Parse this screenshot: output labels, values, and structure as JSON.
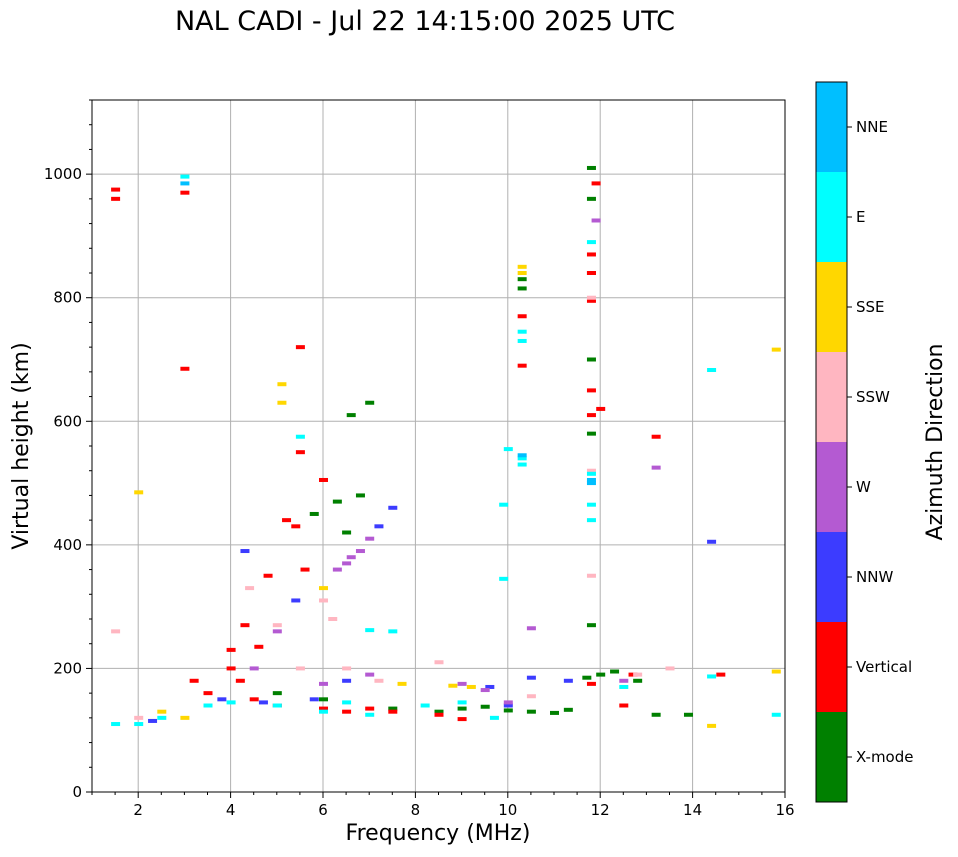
{
  "title": "NAL CADI - Jul 22 14:15:00 2025 UTC",
  "chart_data": {
    "type": "scatter",
    "title": "NAL CADI - Jul 22 14:15:00 2025 UTC",
    "xlabel": "Frequency (MHz)",
    "ylabel": "Virtual height (km)",
    "xlim": [
      1,
      16
    ],
    "ylim": [
      0,
      1120
    ],
    "xticks": [
      2,
      4,
      6,
      8,
      10,
      12,
      14,
      16
    ],
    "yticks": [
      0,
      200,
      400,
      600,
      800,
      1000
    ],
    "grid": true,
    "colorbar": {
      "label": "Azimuth Direction",
      "categories": [
        "X-mode",
        "Vertical",
        "NNW",
        "W",
        "SSW",
        "SSE",
        "E",
        "NNE"
      ],
      "colors": [
        "#008000",
        "#ff0000",
        "#3c3cff",
        "#b45ad2",
        "#ffb6c1",
        "#ffd700",
        "#00ffff",
        "#00bfff"
      ]
    },
    "series": [
      {
        "name": "X-mode",
        "points": [
          [
            9.0,
            135
          ],
          [
            9.5,
            138
          ],
          [
            10.0,
            132
          ],
          [
            10.5,
            130
          ],
          [
            11.0,
            128
          ],
          [
            11.3,
            133
          ],
          [
            6.5,
            420
          ],
          [
            6.8,
            480
          ],
          [
            7.0,
            630
          ],
          [
            6.6,
            610
          ],
          [
            11.8,
            1010
          ],
          [
            11.8,
            960
          ],
          [
            11.8,
            840
          ],
          [
            11.8,
            700
          ],
          [
            11.8,
            580
          ],
          [
            11.8,
            270
          ],
          [
            10.3,
            830
          ],
          [
            10.3,
            815
          ],
          [
            12.3,
            195
          ],
          [
            12.8,
            180
          ],
          [
            13.2,
            125
          ],
          [
            13.9,
            125
          ],
          [
            8.5,
            130
          ],
          [
            7.5,
            135
          ],
          [
            6.0,
            150
          ],
          [
            5.0,
            160
          ],
          [
            12.0,
            190
          ],
          [
            11.7,
            185
          ],
          [
            6.3,
            470
          ],
          [
            5.8,
            450
          ]
        ]
      },
      {
        "name": "Vertical",
        "points": [
          [
            1.5,
            975
          ],
          [
            1.5,
            960
          ],
          [
            3.0,
            970
          ],
          [
            3.0,
            685
          ],
          [
            5.5,
            720
          ],
          [
            5.5,
            550
          ],
          [
            4.0,
            230
          ],
          [
            4.0,
            200
          ],
          [
            4.2,
            180
          ],
          [
            3.5,
            160
          ],
          [
            4.5,
            150
          ],
          [
            5.0,
            140
          ],
          [
            6.0,
            135
          ],
          [
            6.5,
            130
          ],
          [
            7.0,
            135
          ],
          [
            7.5,
            130
          ],
          [
            8.5,
            125
          ],
          [
            9.0,
            118
          ],
          [
            10.3,
            770
          ],
          [
            10.3,
            690
          ],
          [
            11.8,
            870
          ],
          [
            11.8,
            840
          ],
          [
            11.8,
            795
          ],
          [
            11.8,
            650
          ],
          [
            11.8,
            610
          ],
          [
            11.9,
            985
          ],
          [
            12.0,
            620
          ],
          [
            13.2,
            575
          ],
          [
            12.7,
            190
          ],
          [
            14.6,
            190
          ],
          [
            12.5,
            140
          ],
          [
            5.2,
            440
          ],
          [
            5.4,
            430
          ],
          [
            6.0,
            505
          ],
          [
            4.8,
            350
          ],
          [
            5.6,
            360
          ],
          [
            3.2,
            180
          ],
          [
            4.3,
            270
          ],
          [
            4.6,
            235
          ],
          [
            11.8,
            175
          ]
        ]
      },
      {
        "name": "NNW",
        "points": [
          [
            4.3,
            390
          ],
          [
            5.4,
            310
          ],
          [
            7.5,
            460
          ],
          [
            7.2,
            430
          ],
          [
            14.4,
            405
          ],
          [
            10.0,
            140
          ],
          [
            9.6,
            170
          ],
          [
            10.5,
            185
          ],
          [
            11.3,
            180
          ],
          [
            6.5,
            180
          ],
          [
            5.8,
            150
          ],
          [
            4.7,
            145
          ],
          [
            3.8,
            150
          ],
          [
            2.3,
            115
          ]
        ]
      },
      {
        "name": "W",
        "points": [
          [
            6.5,
            370
          ],
          [
            6.8,
            390
          ],
          [
            6.3,
            360
          ],
          [
            7.0,
            410
          ],
          [
            6.6,
            380
          ],
          [
            10.5,
            265
          ],
          [
            11.9,
            925
          ],
          [
            13.2,
            525
          ],
          [
            9.5,
            165
          ],
          [
            9.0,
            175
          ],
          [
            5.0,
            260
          ],
          [
            4.5,
            200
          ],
          [
            6.0,
            175
          ],
          [
            7.0,
            190
          ],
          [
            12.5,
            180
          ],
          [
            10.0,
            145
          ]
        ]
      },
      {
        "name": "SSW",
        "points": [
          [
            1.5,
            260
          ],
          [
            4.4,
            330
          ],
          [
            6.2,
            280
          ],
          [
            5.0,
            270
          ],
          [
            6.0,
            310
          ],
          [
            6.5,
            200
          ],
          [
            8.5,
            210
          ],
          [
            11.8,
            800
          ],
          [
            11.8,
            350
          ],
          [
            11.8,
            520
          ],
          [
            10.5,
            155
          ],
          [
            13.5,
            200
          ],
          [
            12.8,
            190
          ],
          [
            7.2,
            180
          ],
          [
            5.5,
            200
          ],
          [
            2.0,
            120
          ]
        ]
      },
      {
        "name": "SSE",
        "points": [
          [
            5.1,
            660
          ],
          [
            5.1,
            630
          ],
          [
            10.3,
            850
          ],
          [
            10.3,
            840
          ],
          [
            2.0,
            485
          ],
          [
            15.8,
            716
          ],
          [
            15.8,
            195
          ],
          [
            14.4,
            107
          ],
          [
            9.2,
            170
          ],
          [
            8.8,
            172
          ],
          [
            7.7,
            175
          ],
          [
            6.0,
            330
          ],
          [
            2.5,
            130
          ],
          [
            3.0,
            120
          ]
        ]
      },
      {
        "name": "E",
        "points": [
          [
            3.0,
            996
          ],
          [
            5.5,
            575
          ],
          [
            10.3,
            745
          ],
          [
            10.3,
            730
          ],
          [
            10.3,
            540
          ],
          [
            10.3,
            530
          ],
          [
            10.0,
            555
          ],
          [
            9.9,
            465
          ],
          [
            9.9,
            345
          ],
          [
            11.8,
            890
          ],
          [
            11.8,
            515
          ],
          [
            11.8,
            465
          ],
          [
            11.8,
            440
          ],
          [
            14.4,
            683
          ],
          [
            15.8,
            125
          ],
          [
            1.5,
            110
          ],
          [
            2.0,
            110
          ],
          [
            2.5,
            120
          ],
          [
            3.5,
            140
          ],
          [
            4.0,
            145
          ],
          [
            5.0,
            140
          ],
          [
            6.0,
            130
          ],
          [
            6.5,
            145
          ],
          [
            7.0,
            125
          ],
          [
            8.2,
            140
          ],
          [
            9.0,
            145
          ],
          [
            9.7,
            120
          ],
          [
            12.5,
            170
          ],
          [
            14.4,
            187
          ],
          [
            7.5,
            260
          ],
          [
            7.0,
            262
          ]
        ]
      },
      {
        "name": "NNE",
        "points": [
          [
            11.8,
            500
          ],
          [
            3.0,
            985
          ],
          [
            10.3,
            545
          ],
          [
            11.8,
            505
          ]
        ]
      }
    ]
  }
}
